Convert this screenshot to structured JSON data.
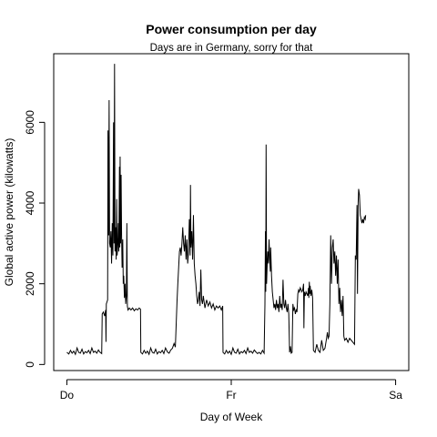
{
  "chart_data": {
    "type": "line",
    "title": "Power consumption per day",
    "subtitle": "Days are in Germany, sorry for that",
    "xlabel": "Day of Week",
    "ylabel": "Global active power (kilowatts)",
    "x_ticks": [
      {
        "x": 0,
        "label": "Do"
      },
      {
        "x": 1,
        "label": "Fr"
      },
      {
        "x": 2,
        "label": "Sa"
      }
    ],
    "y_ticks": [
      0,
      2000,
      4000,
      6000
    ],
    "xlim": [
      -0.08,
      2.08
    ],
    "ylim": [
      -150,
      7700
    ],
    "grid": false,
    "legend": "none",
    "line_color": "#000000",
    "series": [
      {
        "points": [
          [
            0.0,
            300
          ],
          [
            0.012,
            260
          ],
          [
            0.022,
            350
          ],
          [
            0.032,
            280
          ],
          [
            0.042,
            330
          ],
          [
            0.052,
            250
          ],
          [
            0.062,
            410
          ],
          [
            0.072,
            300
          ],
          [
            0.082,
            280
          ],
          [
            0.092,
            380
          ],
          [
            0.102,
            260
          ],
          [
            0.112,
            320
          ],
          [
            0.122,
            290
          ],
          [
            0.132,
            350
          ],
          [
            0.142,
            270
          ],
          [
            0.152,
            410
          ],
          [
            0.162,
            300
          ],
          [
            0.172,
            330
          ],
          [
            0.182,
            280
          ],
          [
            0.192,
            360
          ],
          [
            0.2,
            310
          ],
          [
            0.212,
            270
          ],
          [
            0.215,
            1250
          ],
          [
            0.222,
            1300
          ],
          [
            0.23,
            1200
          ],
          [
            0.236,
            1350
          ],
          [
            0.238,
            560
          ],
          [
            0.24,
            1500
          ],
          [
            0.248,
            1600
          ],
          [
            0.25,
            5800
          ],
          [
            0.254,
            3200
          ],
          [
            0.257,
            6550
          ],
          [
            0.26,
            3000
          ],
          [
            0.264,
            2900
          ],
          [
            0.268,
            3300
          ],
          [
            0.272,
            2500
          ],
          [
            0.276,
            3500
          ],
          [
            0.28,
            2700
          ],
          [
            0.284,
            6000
          ],
          [
            0.287,
            3000
          ],
          [
            0.29,
            7450
          ],
          [
            0.293,
            2800
          ],
          [
            0.297,
            3400
          ],
          [
            0.3,
            2600
          ],
          [
            0.303,
            4100
          ],
          [
            0.306,
            2700
          ],
          [
            0.31,
            3000
          ],
          [
            0.313,
            3500
          ],
          [
            0.316,
            2800
          ],
          [
            0.32,
            4900
          ],
          [
            0.322,
            2900
          ],
          [
            0.324,
            5150
          ],
          [
            0.327,
            3000
          ],
          [
            0.33,
            4700
          ],
          [
            0.333,
            3200
          ],
          [
            0.336,
            2400
          ],
          [
            0.34,
            3100
          ],
          [
            0.343,
            2000
          ],
          [
            0.346,
            2200
          ],
          [
            0.35,
            1650
          ],
          [
            0.354,
            2000
          ],
          [
            0.358,
            1500
          ],
          [
            0.362,
            1700
          ],
          [
            0.365,
            3500
          ],
          [
            0.368,
            1450
          ],
          [
            0.372,
            1350
          ],
          [
            0.38,
            1400
          ],
          [
            0.39,
            1350
          ],
          [
            0.4,
            1400
          ],
          [
            0.41,
            1330
          ],
          [
            0.42,
            1380
          ],
          [
            0.43,
            1350
          ],
          [
            0.44,
            1400
          ],
          [
            0.448,
            1370
          ],
          [
            0.45,
            300
          ],
          [
            0.46,
            260
          ],
          [
            0.47,
            350
          ],
          [
            0.48,
            280
          ],
          [
            0.49,
            330
          ],
          [
            0.5,
            250
          ],
          [
            0.51,
            410
          ],
          [
            0.52,
            300
          ],
          [
            0.53,
            280
          ],
          [
            0.54,
            380
          ],
          [
            0.55,
            260
          ],
          [
            0.56,
            320
          ],
          [
            0.57,
            290
          ],
          [
            0.58,
            350
          ],
          [
            0.59,
            270
          ],
          [
            0.6,
            410
          ],
          [
            0.612,
            310
          ],
          [
            0.622,
            280
          ],
          [
            0.632,
            360
          ],
          [
            0.642,
            400
          ],
          [
            0.652,
            520
          ],
          [
            0.66,
            430
          ],
          [
            0.67,
            1550
          ],
          [
            0.675,
            2000
          ],
          [
            0.68,
            2400
          ],
          [
            0.685,
            2800
          ],
          [
            0.69,
            2900
          ],
          [
            0.695,
            2700
          ],
          [
            0.7,
            3000
          ],
          [
            0.705,
            3400
          ],
          [
            0.71,
            3000
          ],
          [
            0.715,
            2800
          ],
          [
            0.72,
            3200
          ],
          [
            0.725,
            2600
          ],
          [
            0.73,
            3100
          ],
          [
            0.735,
            2500
          ],
          [
            0.74,
            2800
          ],
          [
            0.745,
            3600
          ],
          [
            0.75,
            2700
          ],
          [
            0.752,
            4450
          ],
          [
            0.755,
            2900
          ],
          [
            0.76,
            3300
          ],
          [
            0.765,
            2600
          ],
          [
            0.77,
            3700
          ],
          [
            0.775,
            2500
          ],
          [
            0.78,
            2200
          ],
          [
            0.785,
            2000
          ],
          [
            0.79,
            1700
          ],
          [
            0.795,
            1500
          ],
          [
            0.8,
            1600
          ],
          [
            0.805,
            1800
          ],
          [
            0.81,
            1450
          ],
          [
            0.815,
            2350
          ],
          [
            0.82,
            1600
          ],
          [
            0.825,
            1500
          ],
          [
            0.83,
            1700
          ],
          [
            0.835,
            1550
          ],
          [
            0.84,
            1400
          ],
          [
            0.85,
            1600
          ],
          [
            0.86,
            1450
          ],
          [
            0.87,
            1550
          ],
          [
            0.88,
            1400
          ],
          [
            0.89,
            1500
          ],
          [
            0.9,
            1350
          ],
          [
            0.91,
            1450
          ],
          [
            0.92,
            1400
          ],
          [
            0.93,
            1450
          ],
          [
            0.94,
            1350
          ],
          [
            0.948,
            1450
          ],
          [
            0.95,
            300
          ],
          [
            0.96,
            260
          ],
          [
            0.97,
            350
          ],
          [
            0.98,
            280
          ],
          [
            0.99,
            330
          ],
          [
            1.0,
            250
          ],
          [
            1.01,
            410
          ],
          [
            1.02,
            300
          ],
          [
            1.03,
            280
          ],
          [
            1.04,
            380
          ],
          [
            1.05,
            260
          ],
          [
            1.06,
            320
          ],
          [
            1.07,
            290
          ],
          [
            1.08,
            350
          ],
          [
            1.09,
            270
          ],
          [
            1.1,
            410
          ],
          [
            1.11,
            300
          ],
          [
            1.12,
            330
          ],
          [
            1.13,
            280
          ],
          [
            1.14,
            360
          ],
          [
            1.15,
            310
          ],
          [
            1.16,
            270
          ],
          [
            1.17,
            300
          ],
          [
            1.18,
            260
          ],
          [
            1.19,
            350
          ],
          [
            1.2,
            280
          ],
          [
            1.205,
            1500
          ],
          [
            1.208,
            3300
          ],
          [
            1.21,
            1800
          ],
          [
            1.212,
            5450
          ],
          [
            1.215,
            2000
          ],
          [
            1.218,
            2400
          ],
          [
            1.222,
            2800
          ],
          [
            1.226,
            2500
          ],
          [
            1.23,
            3100
          ],
          [
            1.234,
            2600
          ],
          [
            1.238,
            2300
          ],
          [
            1.24,
            2900
          ],
          [
            1.245,
            2200
          ],
          [
            1.25,
            1800
          ],
          [
            1.255,
            1600
          ],
          [
            1.26,
            1400
          ],
          [
            1.265,
            1500
          ],
          [
            1.27,
            1350
          ],
          [
            1.275,
            1600
          ],
          [
            1.28,
            1400
          ],
          [
            1.285,
            1500
          ],
          [
            1.29,
            1300
          ],
          [
            1.295,
            1700
          ],
          [
            1.3,
            1400
          ],
          [
            1.305,
            1500
          ],
          [
            1.31,
            1350
          ],
          [
            1.315,
            2100
          ],
          [
            1.32,
            1500
          ],
          [
            1.325,
            1400
          ],
          [
            1.33,
            1600
          ],
          [
            1.335,
            1400
          ],
          [
            1.34,
            1300
          ],
          [
            1.345,
            1500
          ],
          [
            1.35,
            1250
          ],
          [
            1.355,
            300
          ],
          [
            1.36,
            450
          ],
          [
            1.365,
            280
          ],
          [
            1.37,
            300
          ],
          [
            1.375,
            1500
          ],
          [
            1.38,
            1350
          ],
          [
            1.385,
            1400
          ],
          [
            1.39,
            1250
          ],
          [
            1.395,
            1350
          ],
          [
            1.4,
            1300
          ],
          [
            1.405,
            1750
          ],
          [
            1.41,
            1850
          ],
          [
            1.415,
            1800
          ],
          [
            1.42,
            1900
          ],
          [
            1.425,
            1850
          ],
          [
            1.43,
            1800
          ],
          [
            1.435,
            1850
          ],
          [
            1.44,
            2000
          ],
          [
            1.442,
            900
          ],
          [
            1.445,
            1800
          ],
          [
            1.45,
            1700
          ],
          [
            1.455,
            1800
          ],
          [
            1.46,
            1750
          ],
          [
            1.465,
            1700
          ],
          [
            1.47,
            1900
          ],
          [
            1.472,
            1650
          ],
          [
            1.475,
            2050
          ],
          [
            1.478,
            1750
          ],
          [
            1.48,
            1950
          ],
          [
            1.485,
            1700
          ],
          [
            1.49,
            1850
          ],
          [
            1.495,
            1650
          ],
          [
            1.5,
            350
          ],
          [
            1.51,
            300
          ],
          [
            1.52,
            500
          ],
          [
            1.53,
            350
          ],
          [
            1.54,
            300
          ],
          [
            1.55,
            600
          ],
          [
            1.56,
            350
          ],
          [
            1.57,
            400
          ],
          [
            1.58,
            650
          ],
          [
            1.585,
            800
          ],
          [
            1.59,
            650
          ],
          [
            1.595,
            700
          ],
          [
            1.6,
            1500
          ],
          [
            1.605,
            3200
          ],
          [
            1.61,
            2000
          ],
          [
            1.615,
            2900
          ],
          [
            1.62,
            3100
          ],
          [
            1.625,
            2500
          ],
          [
            1.63,
            2800
          ],
          [
            1.635,
            2200
          ],
          [
            1.64,
            2700
          ],
          [
            1.645,
            2000
          ],
          [
            1.65,
            2600
          ],
          [
            1.655,
            1500
          ],
          [
            1.66,
            1900
          ],
          [
            1.665,
            1300
          ],
          [
            1.67,
            1600
          ],
          [
            1.675,
            1200
          ],
          [
            1.68,
            1700
          ],
          [
            1.685,
            700
          ],
          [
            1.69,
            600
          ],
          [
            1.7,
            650
          ],
          [
            1.71,
            550
          ],
          [
            1.72,
            650
          ],
          [
            1.73,
            600
          ],
          [
            1.74,
            550
          ],
          [
            1.75,
            500
          ],
          [
            1.755,
            2700
          ],
          [
            1.76,
            2600
          ],
          [
            1.765,
            3950
          ],
          [
            1.768,
            1750
          ],
          [
            1.772,
            4000
          ],
          [
            1.775,
            4350
          ],
          [
            1.78,
            4200
          ],
          [
            1.785,
            3700
          ],
          [
            1.79,
            3600
          ],
          [
            1.795,
            3500
          ],
          [
            1.8,
            3600
          ],
          [
            1.805,
            3500
          ],
          [
            1.81,
            3650
          ],
          [
            1.815,
            3600
          ],
          [
            1.818,
            3700
          ]
        ]
      }
    ]
  }
}
